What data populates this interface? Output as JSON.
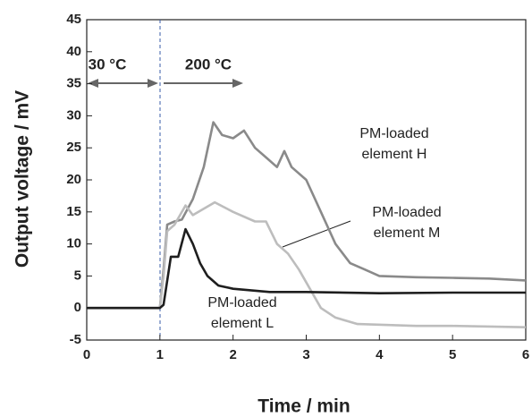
{
  "chart_data": {
    "type": "line",
    "x_label": "Time / min",
    "y_label": "Output voltage / mV",
    "xlim": [
      0,
      6
    ],
    "xticks": [
      0,
      1,
      2,
      3,
      4,
      5,
      6
    ],
    "ylim": [
      -5,
      45
    ],
    "yticks": [
      -5,
      0,
      5,
      10,
      15,
      20,
      25,
      30,
      35,
      40,
      45
    ],
    "annotations": [
      "30 °C",
      "200 °C"
    ],
    "series": [
      {
        "label": [
          "PM-loaded",
          "element H"
        ],
        "color": "#8a8a8a",
        "x": [
          0,
          0.5,
          1.0,
          1.05,
          1.1,
          1.2,
          1.3,
          1.45,
          1.6,
          1.73,
          1.85,
          2.0,
          2.15,
          2.3,
          2.45,
          2.6,
          2.7,
          2.8,
          3.0,
          3.2,
          3.4,
          3.6,
          3.8,
          4.0,
          4.5,
          5.0,
          5.5,
          6.0
        ],
        "values": [
          0,
          0,
          0,
          6,
          13,
          13.5,
          13.8,
          17,
          22,
          29,
          27,
          26.5,
          27.7,
          25,
          23.5,
          22,
          24.5,
          22,
          20,
          15,
          10,
          7,
          6,
          5,
          4.8,
          4.7,
          4.6,
          4.3
        ]
      },
      {
        "label": [
          "PM-loaded",
          "element M"
        ],
        "color": "#bdbdbd",
        "x": [
          0,
          0.5,
          1.0,
          1.05,
          1.1,
          1.2,
          1.35,
          1.45,
          1.6,
          1.75,
          2.0,
          2.3,
          2.45,
          2.6,
          2.75,
          2.9,
          3.05,
          3.2,
          3.4,
          3.7,
          4.5,
          5.0,
          6.0
        ],
        "values": [
          0,
          0,
          0,
          5,
          12,
          13,
          16,
          14.5,
          15.5,
          16.5,
          15,
          13.5,
          13.5,
          10,
          8.5,
          6,
          3,
          0,
          -1.5,
          -2.5,
          -2.8,
          -2.8,
          -3
        ]
      },
      {
        "label": [
          "PM-loaded",
          "element L"
        ],
        "color": "#1e1e1e",
        "x": [
          0,
          0.5,
          1.0,
          1.05,
          1.15,
          1.25,
          1.35,
          1.45,
          1.55,
          1.65,
          1.8,
          2.0,
          2.5,
          3.0,
          4.0,
          5.0,
          6.0
        ],
        "values": [
          0,
          0,
          0,
          0.5,
          8,
          8,
          12.3,
          10,
          7,
          5,
          3.5,
          3,
          2.5,
          2.5,
          2.3,
          2.4,
          2.4
        ]
      }
    ]
  }
}
